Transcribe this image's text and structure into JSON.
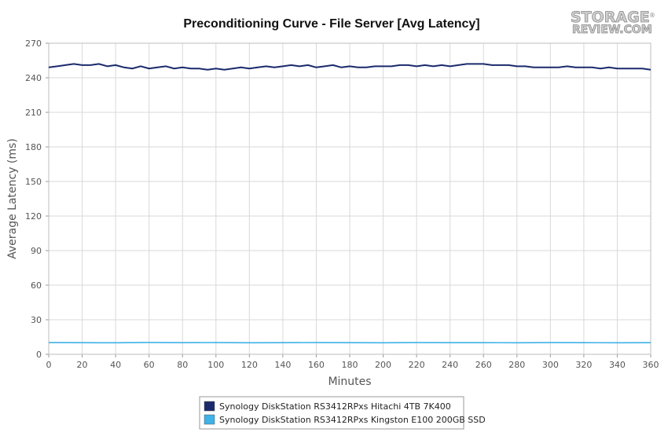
{
  "chart_data": {
    "type": "line",
    "title": "Preconditioning Curve - File Server [Avg Latency]",
    "xlabel": "Minutes",
    "ylabel": "Average Latency (ms)",
    "xlim": [
      0,
      360
    ],
    "ylim": [
      0,
      270
    ],
    "x_ticks": [
      0,
      20,
      40,
      60,
      80,
      100,
      120,
      140,
      160,
      180,
      200,
      220,
      240,
      260,
      280,
      300,
      320,
      340,
      360
    ],
    "y_ticks": [
      0,
      30,
      60,
      90,
      120,
      150,
      180,
      210,
      240,
      270
    ],
    "grid": true,
    "legend_position": "bottom",
    "series": [
      {
        "name": "Synology DiskStation RS3412RPxs Hitachi 4TB 7K400",
        "color": "#1a2a6c",
        "x": [
          0,
          5,
          10,
          15,
          20,
          25,
          30,
          35,
          40,
          45,
          50,
          55,
          60,
          65,
          70,
          75,
          80,
          85,
          90,
          95,
          100,
          105,
          110,
          115,
          120,
          125,
          130,
          135,
          140,
          145,
          150,
          155,
          160,
          165,
          170,
          175,
          180,
          185,
          190,
          195,
          200,
          205,
          210,
          215,
          220,
          225,
          230,
          235,
          240,
          245,
          250,
          255,
          260,
          265,
          270,
          275,
          280,
          285,
          290,
          295,
          300,
          305,
          310,
          315,
          320,
          325,
          330,
          335,
          340,
          345,
          350,
          355,
          360
        ],
        "values": [
          249,
          250,
          251,
          252,
          251,
          251,
          252,
          250,
          251,
          249,
          248,
          250,
          248,
          249,
          250,
          248,
          249,
          248,
          248,
          247,
          248,
          247,
          248,
          249,
          248,
          249,
          250,
          249,
          250,
          251,
          250,
          251,
          249,
          250,
          251,
          249,
          250,
          249,
          249,
          250,
          250,
          250,
          251,
          251,
          250,
          251,
          250,
          251,
          250,
          251,
          252,
          252,
          252,
          251,
          251,
          251,
          250,
          250,
          249,
          249,
          249,
          249,
          250,
          249,
          249,
          249,
          248,
          249,
          248,
          248,
          248,
          248,
          247
        ]
      },
      {
        "name": "Synology DiskStation RS3412RPxs Kingston E100 200GB SSD",
        "color": "#3fb2e8",
        "x": [
          0,
          20,
          40,
          60,
          80,
          100,
          120,
          140,
          160,
          180,
          200,
          220,
          240,
          260,
          280,
          300,
          320,
          340,
          360
        ],
        "values": [
          10.2,
          10.1,
          10.0,
          10.3,
          10.1,
          10.2,
          10.0,
          10.1,
          10.2,
          10.1,
          10.0,
          10.2,
          10.1,
          10.1,
          10.0,
          10.2,
          10.1,
          10.0,
          10.1
        ]
      }
    ]
  },
  "logo": {
    "line1": "STORAGE",
    "line2": "REVIEW.COM",
    "mark": "®"
  }
}
